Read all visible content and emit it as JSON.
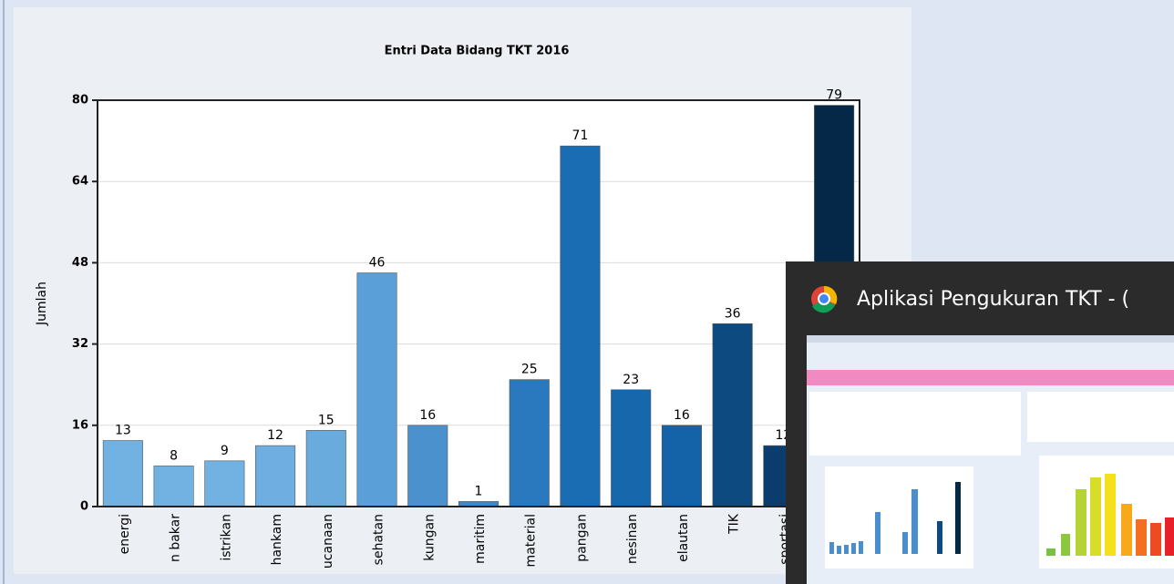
{
  "chart_data": {
    "type": "bar",
    "title": "Entri Data Bidang TKT 2016",
    "y_label": "Jumlah",
    "categories": [
      "energi",
      "n bakar",
      "istrikan",
      "hankam",
      "ucanaan",
      "sehatan",
      "kungan",
      "maritim",
      "material",
      "pangan",
      "nesinan",
      "elautan",
      "TIK",
      "sportasi",
      null
    ],
    "values": [
      13,
      8,
      9,
      12,
      15,
      46,
      16,
      1,
      25,
      71,
      23,
      16,
      36,
      12,
      79
    ],
    "colors": [
      "#72b2e2",
      "#72b2e2",
      "#72b2e2",
      "#6eaee0",
      "#6aabde",
      "#5a9fd8",
      "#4b91cd",
      "#3f88c7",
      "#2a79be",
      "#1a6cb3",
      "#1767ad",
      "#1462a7",
      "#0d4a80",
      "#0a3d6e",
      "#062848"
    ],
    "ylim": [
      0,
      80
    ],
    "yticks": [
      0,
      16,
      32,
      48,
      64,
      80
    ],
    "grid": true
  },
  "popup": {
    "title": "Aplikasi Pengukuran TKT - ("
  }
}
